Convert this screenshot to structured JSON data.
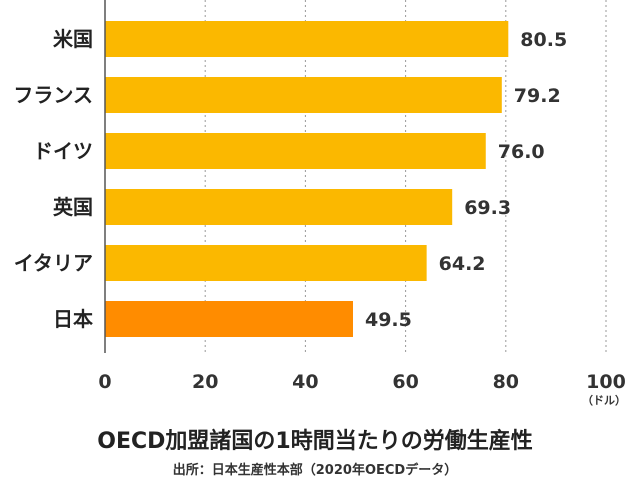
{
  "chart_data": {
    "type": "bar",
    "orientation": "horizontal",
    "categories": [
      "米国",
      "フランス",
      "ドイツ",
      "英国",
      "イタリア",
      "日本"
    ],
    "values": [
      80.5,
      79.2,
      76.0,
      69.3,
      64.2,
      49.5
    ],
    "value_labels": [
      "80.5",
      "79.2",
      "76.0",
      "69.3",
      "64.2",
      "49.5"
    ],
    "xlim": [
      0,
      100
    ],
    "xticks": [
      0,
      20,
      40,
      60,
      80,
      100
    ],
    "x_unit": "（ドル）",
    "grid": "vertical-dotted",
    "colors": {
      "default_bar": "#FBB800",
      "highlight_bar": "#FF8C00",
      "grid": "#999999",
      "axis": "#555555"
    },
    "highlight_category": "日本",
    "title": "OECD加盟諸国の1時間当たりの労働生産性",
    "source": "出所：日本生産性本部（2020年OECDデータ）"
  }
}
